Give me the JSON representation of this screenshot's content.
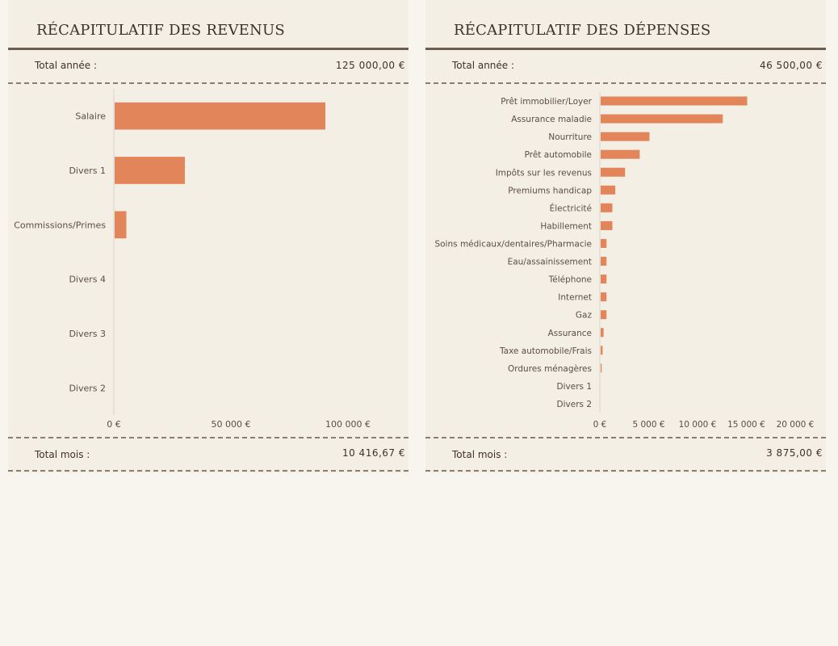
{
  "revenus": {
    "title": "RÉCAPITULATIF DES REVENUS",
    "total_annee_label": "Total année :",
    "total_annee_value": "125 000,00 €",
    "total_mois_label": "Total mois :",
    "total_mois_value": "10 416,67 €"
  },
  "depenses": {
    "title": "RÉCAPITULATIF DES DÉPENSES",
    "total_annee_label": "Total année :",
    "total_annee_value": "46 500,00 €",
    "total_mois_label": "Total mois :",
    "total_mois_value": "3 875,00 €"
  },
  "colors": {
    "bar": "#e3855a",
    "axis": "#d8d2c6"
  },
  "chart_data": [
    {
      "type": "bar",
      "orientation": "horizontal",
      "categories": [
        "Salaire",
        "Divers 1",
        "Commissions/Primes",
        "Divers 4",
        "Divers 3",
        "Divers 2"
      ],
      "values": [
        90000,
        30000,
        5000,
        0,
        0,
        0
      ],
      "xlim": [
        0,
        100000
      ],
      "xticks": [
        0,
        50000,
        100000
      ],
      "tick_labels": [
        "0 €",
        "50 000 €",
        "100 000 €"
      ],
      "grid": false
    },
    {
      "type": "bar",
      "orientation": "horizontal",
      "categories": [
        "Prêt immobilier/Loyer",
        "Assurance maladie",
        "Nourriture",
        "Prêt automobile",
        "Impôts sur les revenus",
        "Premiums handicap",
        "Électricité",
        "Habillement",
        "Soins médicaux/dentaires/Pharmacie",
        "Eau/assainissement",
        "Téléphone",
        "Internet",
        "Gaz",
        "Assurance",
        "Taxe automobile/Frais",
        "Ordures ménagères",
        "Divers 1",
        "Divers 2"
      ],
      "values": [
        15000,
        12500,
        5000,
        4000,
        2500,
        1500,
        1200,
        1200,
        600,
        600,
        600,
        600,
        600,
        300,
        200,
        100,
        0,
        0
      ],
      "xlim": [
        0,
        20000
      ],
      "xticks": [
        0,
        5000,
        10000,
        15000,
        20000
      ],
      "tick_labels": [
        "0 €",
        "5 000 €",
        "10 000 €",
        "15 000 €",
        "20 000 €"
      ],
      "grid": false
    }
  ]
}
